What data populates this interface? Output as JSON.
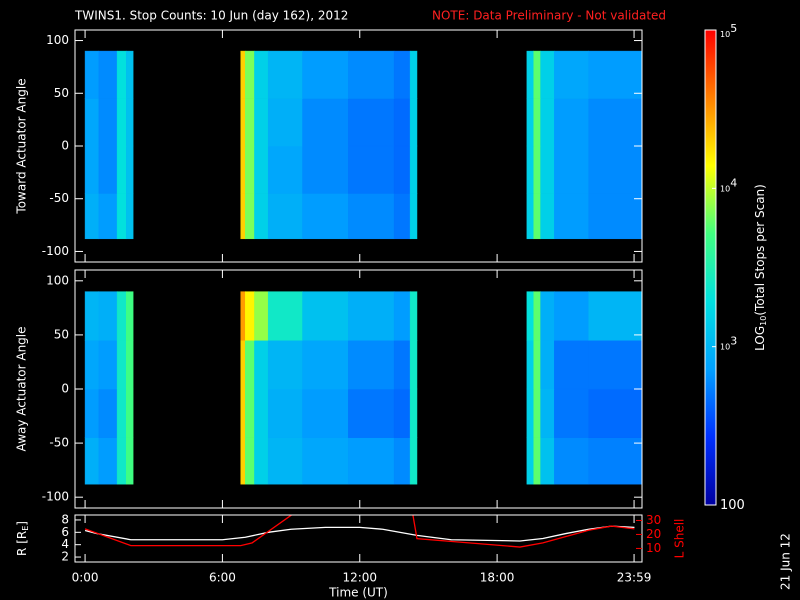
{
  "title": "TWINS1. Stop Counts: 10 Jun (day 162), 2012",
  "note": "NOTE: Data Preliminary - Not validated",
  "date_stamp": "21 Jun 12",
  "chart_data": [
    {
      "type": "heatmap",
      "ylabel": "Toward Actuator Angle",
      "xlim": [
        -0.44,
        24.33
      ],
      "ylim": [
        -110,
        110
      ],
      "yticks": [
        -100,
        -50,
        0,
        50,
        100
      ],
      "x_bins": [
        0,
        0.6,
        1.4,
        1.8,
        2.1,
        6.8,
        7.0,
        7.4,
        8.0,
        9.5,
        11.5,
        13.5,
        14.2,
        14.5,
        19.3,
        19.6,
        19.9,
        20.5,
        22,
        24.33
      ],
      "y_bins": [
        -88,
        -45,
        0,
        45,
        90
      ],
      "counts": [
        [
          900,
          700,
          2000,
          1200,
          null,
          20000,
          7000,
          1500,
          900,
          700,
          600,
          500,
          1500,
          null,
          1500,
          6000,
          1500,
          700,
          600
        ],
        [
          800,
          600,
          2000,
          1200,
          null,
          20000,
          7000,
          1500,
          800,
          600,
          500,
          450,
          1500,
          null,
          1500,
          6000,
          1500,
          700,
          600
        ],
        [
          800,
          600,
          2000,
          1200,
          null,
          20000,
          7000,
          1500,
          900,
          600,
          500,
          450,
          1500,
          null,
          1500,
          6000,
          1500,
          700,
          600
        ],
        [
          700,
          600,
          2000,
          1200,
          null,
          20000,
          7000,
          1500,
          1000,
          700,
          600,
          500,
          1500,
          null,
          1500,
          6000,
          1500,
          800,
          700
        ]
      ]
    },
    {
      "type": "heatmap",
      "ylabel": "Away Actuator Angle",
      "xlim": [
        -0.44,
        24.33
      ],
      "ylim": [
        -110,
        110
      ],
      "yticks": [
        -100,
        -50,
        0,
        50,
        100
      ],
      "x_bins": [
        0,
        0.6,
        1.4,
        1.8,
        2.1,
        6.8,
        7.0,
        7.4,
        8.0,
        9.5,
        11.5,
        13.5,
        14.2,
        14.5,
        19.3,
        19.6,
        19.9,
        20.5,
        22,
        24.33
      ],
      "y_bins": [
        -88,
        -45,
        0,
        45,
        90
      ],
      "counts": [
        [
          900,
          700,
          2500,
          5000,
          null,
          20000,
          6000,
          1500,
          1000,
          800,
          700,
          600,
          2500,
          null,
          1500,
          6000,
          1200,
          600,
          550
        ],
        [
          700,
          600,
          2500,
          5000,
          null,
          20000,
          6000,
          1500,
          900,
          700,
          500,
          450,
          2500,
          null,
          1500,
          6000,
          1000,
          500,
          450
        ],
        [
          800,
          700,
          2500,
          5000,
          null,
          20000,
          6000,
          1500,
          1000,
          800,
          600,
          500,
          2500,
          null,
          1500,
          6000,
          900,
          500,
          500
        ],
        [
          1000,
          900,
          2500,
          5000,
          null,
          30000,
          15000,
          8000,
          2500,
          1200,
          900,
          700,
          2500,
          null,
          2000,
          6000,
          900,
          700,
          1000
        ]
      ]
    },
    {
      "type": "line",
      "ylabel_parts": [
        "R [R",
        "E",
        "]"
      ],
      "y2label": "L Shell",
      "xlabel": "Time (UT)",
      "xlim": [
        -0.44,
        24.33
      ],
      "xticks": [
        {
          "value": 0,
          "label": "0:00"
        },
        {
          "value": 6,
          "label": "6:00"
        },
        {
          "value": 12,
          "label": "12:00"
        },
        {
          "value": 18,
          "label": "18:00"
        },
        {
          "value": 23.983,
          "label": "23:59"
        }
      ],
      "ylim": [
        1.2,
        8.8
      ],
      "yticks": [
        2,
        4,
        6,
        8
      ],
      "y2lim": [
        0.3,
        33.9
      ],
      "y2ticks": [
        10,
        20,
        30
      ],
      "y2color": "#ff0000",
      "series": [
        {
          "color": "#ffffff",
          "x": [
            0,
            0.5,
            2,
            6,
            7,
            8,
            9,
            10.5,
            12,
            13,
            14.5,
            16,
            19,
            20,
            21,
            22,
            23,
            24
          ],
          "values": [
            6.3,
            5.8,
            4.8,
            4.8,
            5.2,
            6.0,
            6.5,
            6.8,
            6.8,
            6.5,
            5.5,
            4.8,
            4.6,
            5.0,
            5.8,
            6.5,
            7.0,
            6.8
          ]
        },
        {
          "color": "#ff0000",
          "axis": "y2",
          "x": [
            0,
            2,
            6.8,
            7.3,
            9.2,
            11,
            14.3,
            14.5,
            19,
            20,
            22,
            23,
            24
          ],
          "values": [
            24,
            12,
            12,
            14,
            36,
            null,
            36,
            17,
            11,
            14,
            23,
            26,
            24
          ]
        }
      ]
    },
    {
      "type": "colorbar",
      "scale": "log",
      "lim": [
        100,
        100000
      ],
      "ticks": [
        {
          "value": 100000,
          "label": "10",
          "exponent": "5"
        },
        {
          "value": 10000,
          "label": "10",
          "exponent": "4"
        },
        {
          "value": 1000,
          "label": "10",
          "exponent": "3"
        },
        100
      ],
      "label_parts": [
        "LOG",
        "10",
        "(Total Stops per Scan)"
      ],
      "colormap": [
        "#0000a0",
        "#0030ff",
        "#00a0ff",
        "#00e0e0",
        "#40ff80",
        "#ffff00",
        "#ff8000",
        "#ff0000"
      ]
    }
  ]
}
